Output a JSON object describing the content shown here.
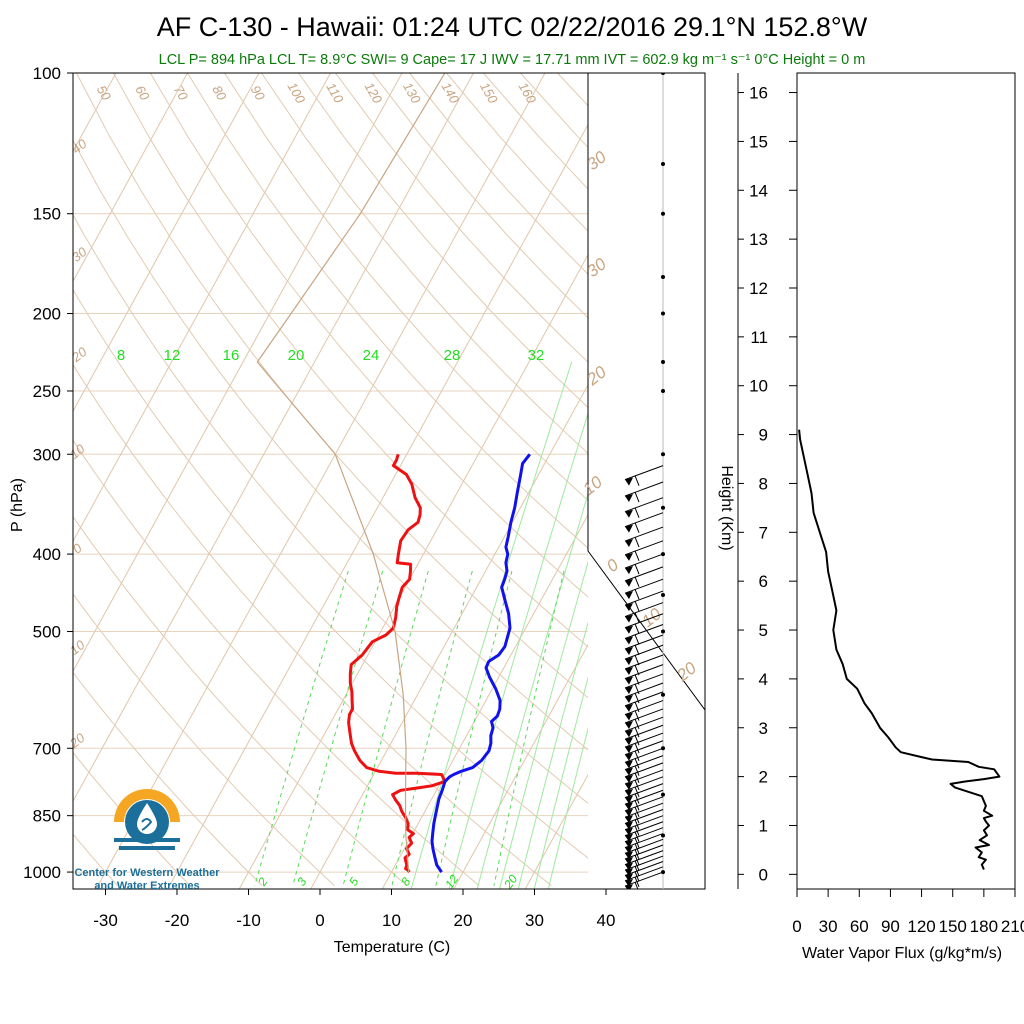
{
  "title": "AF C-130 - Hawaii: 01:24 UTC 02/22/2016  29.1°N 152.8°W",
  "subtitle": "LCL P= 894 hPa  LCL T= 8.9°C  SWI= 9  Cape= 17 J  IWV = 17.71 mm  IVT = 602.9 kg m⁻¹ s⁻¹  0°C Height = 0 m",
  "logo": {
    "line1": "Center for Western Weather",
    "line2": "and Water Extremes"
  },
  "colors": {
    "temperature": "#ee1111",
    "dewpoint": "#1111ee",
    "dry_adiabat": "#c8a582",
    "mixing_ratio": "#22dd22",
    "wind_barb": "#000000",
    "logo_orange": "#f5a623",
    "logo_blue": "#1b6f9a"
  },
  "chart_data": [
    {
      "type": "line",
      "name": "skew-T log-P sounding",
      "xlabel": "Temperature (C)",
      "ylabel": "P (hPa)",
      "y_scale": "log",
      "xlim": [
        -35,
        52
      ],
      "ylim": [
        1050,
        100
      ],
      "x_ticks": [
        "-30",
        "-20",
        "-10",
        "0",
        "10",
        "20",
        "30",
        "40"
      ],
      "y_ticks": [
        "100",
        "150",
        "200",
        "250",
        "300",
        "400",
        "500",
        "700",
        "850",
        "1000"
      ],
      "dry_adiabat_labels_deg": [
        "50",
        "60",
        "70",
        "80",
        "90",
        "100",
        "110",
        "120",
        "130",
        "140",
        "150",
        "160"
      ],
      "isotherm_labels": [
        "40",
        "30",
        "20",
        "10",
        "0",
        "10",
        "20",
        "30",
        "30",
        "20",
        "10",
        "0",
        "10",
        "20",
        "30"
      ],
      "mixing_ratio_labels_top": [
        "8",
        "12",
        "16",
        "20",
        "24",
        "28",
        "32"
      ],
      "mixing_ratio_labels_bottom": [
        "2",
        "3",
        "5",
        "8",
        "12",
        "20"
      ],
      "series": [
        {
          "name": "",
          "color": "#ee1111",
          "points": [
            [
              12.5,
              1000
            ],
            [
              12.2,
              995
            ],
            [
              11.7,
              990
            ],
            [
              11.6,
              980
            ],
            [
              11.2,
              970
            ],
            [
              10.8,
              960
            ],
            [
              11.1,
              950
            ],
            [
              10.3,
              935
            ],
            [
              10.6,
              920
            ],
            [
              9.8,
              905
            ],
            [
              10.1,
              895
            ],
            [
              9.0,
              885
            ],
            [
              8.6,
              870
            ],
            [
              7.8,
              855
            ],
            [
              6.8,
              840
            ],
            [
              6.0,
              825
            ],
            [
              5.0,
              812
            ],
            [
              4.2,
              800
            ],
            [
              5.0,
              790
            ],
            [
              7.0,
              785
            ],
            [
              9.0,
              780
            ],
            [
              10.5,
              770
            ],
            [
              9.5,
              755
            ],
            [
              6.0,
              752
            ],
            [
              3.0,
              752
            ],
            [
              0.5,
              748
            ],
            [
              -1.5,
              740
            ],
            [
              -3.0,
              725
            ],
            [
              -4.5,
              705
            ],
            [
              -5.5,
              690
            ],
            [
              -6.5,
              670
            ],
            [
              -7.5,
              650
            ],
            [
              -8.0,
              635
            ],
            [
              -8.0,
              625
            ],
            [
              -8.7,
              610
            ],
            [
              -9.4,
              595
            ],
            [
              -10.3,
              580
            ],
            [
              -11.0,
              565
            ],
            [
              -11.6,
              550
            ],
            [
              -10.8,
              535
            ],
            [
              -10.4,
              515
            ],
            [
              -9.0,
              505
            ],
            [
              -8.5,
              495
            ],
            [
              -9.0,
              480
            ],
            [
              -9.7,
              465
            ],
            [
              -10.0,
              455
            ],
            [
              -10.4,
              440
            ],
            [
              -10.0,
              430
            ],
            [
              -10.5,
              420
            ],
            [
              -11.0,
              412
            ],
            [
              -13.0,
              410
            ],
            [
              -13.5,
              400
            ],
            [
              -14.2,
              385
            ],
            [
              -14.0,
              373
            ],
            [
              -13.2,
              365
            ],
            [
              -13.5,
              357
            ],
            [
              -14.0,
              350
            ],
            [
              -15.5,
              340
            ],
            [
              -17.0,
              327
            ],
            [
              -18.5,
              318
            ],
            [
              -21.0,
              310
            ],
            [
              -21.0,
              305
            ],
            [
              -21.2,
              300
            ]
          ]
        },
        {
          "name": "",
          "color": "#1111ee",
          "points": [
            [
              17.0,
              1000
            ],
            [
              15.8,
              980
            ],
            [
              15.0,
              960
            ],
            [
              14.0,
              935
            ],
            [
              13.3,
              915
            ],
            [
              12.8,
              895
            ],
            [
              12.2,
              870
            ],
            [
              11.8,
              850
            ],
            [
              11.4,
              830
            ],
            [
              11.0,
              810
            ],
            [
              10.8,
              790
            ],
            [
              10.5,
              770
            ],
            [
              10.8,
              760
            ],
            [
              11.2,
              755
            ],
            [
              12.0,
              748
            ],
            [
              13.3,
              740
            ],
            [
              14.0,
              725
            ],
            [
              14.3,
              705
            ],
            [
              14.0,
              690
            ],
            [
              13.4,
              675
            ],
            [
              13.1,
              660
            ],
            [
              12.4,
              648
            ],
            [
              12.8,
              638
            ],
            [
              12.6,
              625
            ],
            [
              12.0,
              610
            ],
            [
              10.5,
              590
            ],
            [
              8.7,
              570
            ],
            [
              7.5,
              555
            ],
            [
              7.4,
              545
            ],
            [
              8.3,
              535
            ],
            [
              8.5,
              522
            ],
            [
              8.2,
              510
            ],
            [
              7.8,
              495
            ],
            [
              6.5,
              475
            ],
            [
              4.8,
              455
            ],
            [
              3.5,
              440
            ],
            [
              3.3,
              430
            ],
            [
              3.0,
              420
            ],
            [
              2.2,
              410
            ],
            [
              1.8,
              400
            ],
            [
              1.0,
              392
            ],
            [
              0.5,
              380
            ],
            [
              -0.2,
              365
            ],
            [
              -0.8,
              350
            ],
            [
              -1.6,
              335
            ],
            [
              -2.4,
              320
            ],
            [
              -3.1,
              308
            ],
            [
              -2.8,
              300
            ]
          ]
        },
        {
          "name": "",
          "color": "#c8a582",
          "points": [
            [
              12.4,
              1000
            ],
            [
              9.0,
              894
            ],
            [
              6.0,
              800
            ],
            [
              2.5,
              700
            ],
            [
              -2.0,
              600
            ],
            [
              -8.0,
              500
            ],
            [
              -17.0,
              400
            ],
            [
              -30.0,
              300
            ],
            [
              -48.0,
              230
            ],
            [
              -47.0,
              200
            ],
            [
              -45.0,
              150
            ],
            [
              -44.0,
              100
            ]
          ]
        }
      ],
      "wind_barbs": {
        "column": "right of temperature axis",
        "count": 47,
        "pressure_range": [
          310,
          1000
        ],
        "flags_direction": "westerly"
      }
    },
    {
      "type": "line",
      "name": "water vapor flux profile",
      "xlabel": "Water Vapor Flux (g/kg*m/s)",
      "ylabel": "Height (Km)",
      "xlim": [
        0,
        210
      ],
      "ylim": [
        -0.3,
        16.4
      ],
      "x_ticks": [
        "0",
        "30",
        "60",
        "90",
        "120",
        "150",
        "180",
        "210"
      ],
      "y_ticks": [
        "0",
        "1",
        "2",
        "3",
        "4",
        "5",
        "6",
        "7",
        "8",
        "9",
        "10",
        "11",
        "12",
        "13",
        "14",
        "15",
        "16"
      ],
      "series": [
        {
          "name": "",
          "color": "#000000",
          "points": [
            [
              180,
              0.1
            ],
            [
              178,
              0.2
            ],
            [
              182,
              0.3
            ],
            [
              175,
              0.35
            ],
            [
              178,
              0.45
            ],
            [
              172,
              0.55
            ],
            [
              185,
              0.6
            ],
            [
              176,
              0.7
            ],
            [
              183,
              0.8
            ],
            [
              180,
              0.9
            ],
            [
              185,
              1.0
            ],
            [
              182,
              1.08
            ],
            [
              180,
              1.15
            ],
            [
              188,
              1.2
            ],
            [
              180,
              1.3
            ],
            [
              182,
              1.4
            ],
            [
              178,
              1.6
            ],
            [
              152,
              1.78
            ],
            [
              148,
              1.85
            ],
            [
              162,
              1.9
            ],
            [
              180,
              1.95
            ],
            [
              195,
              2.0
            ],
            [
              190,
              2.15
            ],
            [
              175,
              2.2
            ],
            [
              165,
              2.3
            ],
            [
              130,
              2.35
            ],
            [
              120,
              2.4
            ],
            [
              100,
              2.5
            ],
            [
              95,
              2.6
            ],
            [
              88,
              2.8
            ],
            [
              80,
              3.0
            ],
            [
              72,
              3.3
            ],
            [
              65,
              3.5
            ],
            [
              58,
              3.8
            ],
            [
              48,
              4.0
            ],
            [
              44,
              4.3
            ],
            [
              38,
              4.6
            ],
            [
              35,
              5.0
            ],
            [
              38,
              5.4
            ],
            [
              34,
              5.8
            ],
            [
              30,
              6.2
            ],
            [
              28,
              6.6
            ],
            [
              22,
              7.0
            ],
            [
              16,
              7.4
            ],
            [
              14,
              7.8
            ],
            [
              10,
              8.2
            ],
            [
              6,
              8.6
            ],
            [
              3,
              8.9
            ],
            [
              2,
              9.1
            ]
          ]
        }
      ]
    }
  ]
}
